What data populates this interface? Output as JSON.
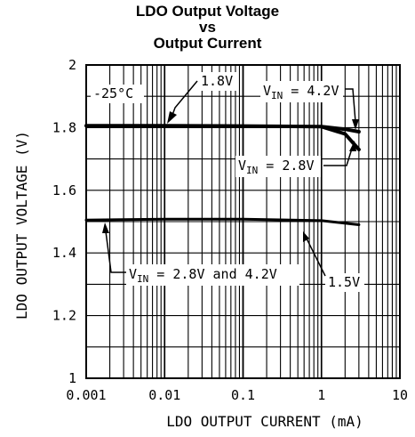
{
  "chart_data": {
    "type": "line",
    "title_lines": [
      "LDO Output Voltage",
      "vs",
      "Output Current"
    ],
    "xlabel": "LDO OUTPUT CURRENT (mA)",
    "ylabel": "LDO OUTPUT VOLTAGE (V)",
    "xscale": "log",
    "xlim": [
      0.001,
      10
    ],
    "ylim": [
      1,
      2
    ],
    "grid": true,
    "x_ticks": [
      {
        "value": 0.001,
        "label": "0.001"
      },
      {
        "value": 0.01,
        "label": "0.01"
      },
      {
        "value": 0.1,
        "label": "0.1"
      },
      {
        "value": 1,
        "label": "1"
      },
      {
        "value": 10,
        "label": "10"
      }
    ],
    "y_ticks": [
      {
        "value": 1,
        "label": "1"
      },
      {
        "value": 1.2,
        "label": "1.2"
      },
      {
        "value": 1.4,
        "label": "1.4"
      },
      {
        "value": 1.6,
        "label": "1.6"
      },
      {
        "value": 1.8,
        "label": "1.8"
      },
      {
        "value": 2,
        "label": "2"
      }
    ],
    "series": [
      {
        "x": [
          0.001,
          0.01,
          0.1,
          1,
          2,
          3
        ],
        "y": [
          1.806,
          1.806,
          1.805,
          1.803,
          1.795,
          1.787
        ],
        "stroke": 4
      },
      {
        "x": [
          1,
          2,
          3
        ],
        "y": [
          1.803,
          1.78,
          1.73
        ],
        "stroke": 4
      },
      {
        "x": [
          0.001,
          0.01,
          0.1,
          1,
          3
        ],
        "y": [
          1.505,
          1.508,
          1.508,
          1.503,
          1.49
        ],
        "stroke": 3
      }
    ],
    "annotations": {
      "temp": "-25°C",
      "v18": "1.8V",
      "v15": "1.5V",
      "vin42_pre": "V",
      "vin42_sub": "IN",
      "vin42_post": " = 4.2V",
      "vin28_pre": "V",
      "vin28_sub": "IN",
      "vin28_post": " = 2.8V",
      "vinboth_pre": "V",
      "vinboth_sub": "IN",
      "vinboth_post": " = 2.8V and 4.2V"
    },
    "colors": {
      "line": "#000000",
      "grid": "#000000",
      "background": "#ffffff"
    }
  }
}
